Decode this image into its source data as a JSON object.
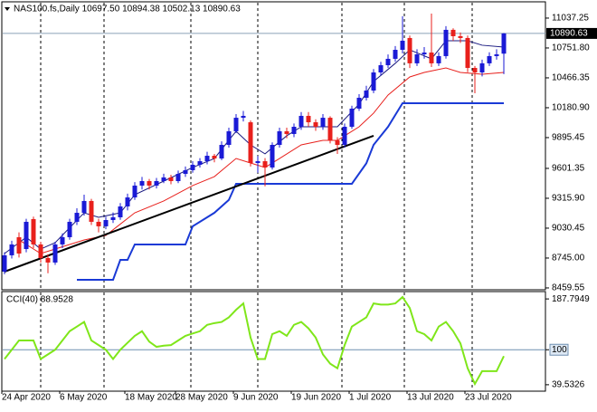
{
  "chart_data": [
    {
      "type": "candlestick",
      "title": "NAS100.fs,Daily  10697.50 10894.38 10502.13 10890.63",
      "categories": [
        "24 Apr 2020",
        null,
        null,
        null,
        null,
        null,
        null,
        null,
        "6 May 2020",
        null,
        null,
        null,
        null,
        null,
        null,
        null,
        null,
        "18 May 2020",
        null,
        null,
        null,
        null,
        null,
        null,
        "28 May 2020",
        null,
        null,
        null,
        null,
        null,
        null,
        null,
        "9 Jun 2020",
        null,
        null,
        null,
        null,
        null,
        null,
        null,
        "19 Jun 2020",
        null,
        null,
        null,
        null,
        null,
        null,
        null,
        "1 Jul 2020",
        null,
        null,
        null,
        null,
        null,
        null,
        null,
        "13 Jul 2020",
        null,
        null,
        null,
        null,
        null,
        null,
        null,
        "23 Jul 2020",
        null,
        null,
        null,
        null,
        null
      ],
      "open": [
        8615,
        8771,
        8944,
        8831,
        9117,
        8875,
        8745,
        8702,
        8875,
        8944,
        9091,
        9177,
        9290,
        9091,
        9048,
        9108,
        9134,
        9238,
        9324,
        9437,
        9480,
        9437,
        9480,
        9515,
        9480,
        9549,
        9584,
        9636,
        9670,
        9722,
        9696,
        9826,
        9956,
        10085,
        10042,
        9653,
        9670,
        9610,
        9826,
        9956,
        9930,
        9999,
        10103,
        10042,
        9999,
        10085,
        9869,
        9826,
        9999,
        10172,
        10276,
        10345,
        10518,
        10587,
        10648,
        10734,
        10847,
        10605,
        10691,
        10708,
        10605,
        10674,
        10925,
        10864,
        10847,
        10561,
        10518,
        10605,
        10674,
        10697.5
      ],
      "high": [
        8800,
        8910,
        8990,
        9120,
        9140,
        8900,
        8780,
        8900,
        8980,
        9120,
        9220,
        9350,
        9310,
        9120,
        9140,
        9180,
        9270,
        9360,
        9470,
        9520,
        9500,
        9510,
        9550,
        9540,
        9580,
        9620,
        9670,
        9700,
        9760,
        9740,
        9860,
        9990,
        10120,
        10150,
        10060,
        9720,
        9700,
        9850,
        9990,
        9990,
        10030,
        10140,
        10140,
        10070,
        10120,
        10100,
        9900,
        10030,
        10200,
        10310,
        10390,
        10550,
        10620,
        10690,
        10770,
        11054,
        10870,
        10740,
        10760,
        11080,
        10710,
        10960,
        10940,
        10900,
        10870,
        10580,
        10640,
        10710,
        10740,
        10894.38
      ],
      "low": [
        8590,
        8740,
        8750,
        8800,
        8840,
        8700,
        8600,
        8680,
        8840,
        8920,
        9060,
        9150,
        9060,
        8990,
        9020,
        9080,
        9110,
        9200,
        9300,
        9400,
        9400,
        9410,
        9460,
        9450,
        9460,
        9520,
        9560,
        9610,
        9640,
        9660,
        9680,
        9800,
        9940,
        10050,
        9620,
        9560,
        9430,
        9590,
        9800,
        9890,
        9900,
        9970,
        10000,
        9960,
        9970,
        9840,
        9740,
        9800,
        9980,
        10150,
        10250,
        10320,
        10490,
        10560,
        10620,
        10700,
        10560,
        10580,
        10650,
        10570,
        10580,
        10650,
        10820,
        10800,
        10520,
        10319,
        10480,
        10580,
        10640,
        10502.13
      ],
      "close": [
        8771,
        8875,
        8788,
        9091,
        8875,
        8745,
        8702,
        8875,
        8944,
        9091,
        9177,
        9290,
        9091,
        9048,
        9108,
        9134,
        9238,
        9324,
        9437,
        9480,
        9437,
        9480,
        9515,
        9480,
        9549,
        9584,
        9636,
        9670,
        9722,
        9696,
        9826,
        9956,
        10085,
        10103,
        9653,
        9670,
        9610,
        9826,
        9956,
        9930,
        9999,
        10103,
        10042,
        9999,
        10085,
        9869,
        9826,
        9999,
        10172,
        10276,
        10345,
        10518,
        10587,
        10648,
        10734,
        10821,
        10605,
        10691,
        10708,
        10605,
        10674,
        10925,
        10864,
        10847,
        10561,
        10518,
        10605,
        10674,
        10691,
        10890.63
      ],
      "up_color": "#1a1ad6",
      "down_color": "#e8201c",
      "overlays": [
        {
          "color": "#e8201c",
          "line_width": 1,
          "x": [
            2,
            5,
            7,
            11,
            14,
            18,
            22,
            26,
            29,
            32,
            34,
            36,
            38,
            41,
            44,
            46,
            49,
            51,
            53,
            56,
            58,
            61,
            63,
            66,
            69
          ],
          "values": [
            8918,
            8788,
            8831,
            8918,
            8961,
            9177,
            9290,
            9437,
            9523,
            9696,
            9653,
            9610,
            9696,
            9826,
            9869,
            9869,
            9999,
            10129,
            10302,
            10475,
            10518,
            10561,
            10518,
            10501,
            10518
          ]
        },
        {
          "color": "#1a1a80",
          "line_width": 1,
          "x": [
            0,
            3,
            5,
            7,
            11,
            13,
            16,
            18,
            22,
            26,
            29,
            32,
            34,
            36,
            39,
            41,
            44,
            46,
            49,
            51,
            54,
            56,
            59,
            61,
            64,
            66,
            69
          ],
          "values": [
            8788,
            8944,
            8831,
            8892,
            9177,
            9134,
            9177,
            9350,
            9480,
            9610,
            9696,
            9956,
            9826,
            9740,
            9913,
            9999,
            9999,
            9999,
            10215,
            10432,
            10605,
            10734,
            10648,
            10821,
            10821,
            10778,
            10760
          ]
        },
        {
          "color": "#1a3ad6",
          "line_width": 2,
          "x": [
            10,
            15,
            16,
            17,
            18,
            25,
            26,
            29,
            31,
            32,
            48,
            50,
            51,
            53,
            55,
            69
          ],
          "values": [
            8537,
            8537,
            8727,
            8727,
            8875,
            8875,
            9048,
            9177,
            9300,
            9454,
            9454,
            9650,
            9826,
            9999,
            10224,
            10224
          ]
        },
        {
          "color": "#000000",
          "line_width": 2,
          "x": [
            0,
            51
          ],
          "values": [
            8615,
            9913
          ]
        }
      ],
      "last_price": 10890.63,
      "ylim": [
        8442,
        11184
      ],
      "yticks": [
        11037.25,
        {
          "value": 10751.8,
          "label": "10751.80"
        },
        10466.35,
        {
          "value": 10180.9,
          "label": "10180.90"
        },
        9895.45,
        9601.35,
        {
          "value": 9315.9,
          "label": "9315.90"
        },
        9030.45,
        {
          "value": 8745,
          "label": "8745.00"
        },
        8459.55
      ]
    },
    {
      "type": "line",
      "title": "CCI(40) 88.9528",
      "color": "#7fe61a",
      "values": [
        84,
        100,
        116,
        116,
        116,
        84,
        92,
        100,
        116,
        132,
        140,
        148,
        116,
        108,
        100,
        84,
        100,
        112,
        124,
        132,
        114,
        105,
        107,
        108,
        116,
        124,
        128,
        132,
        143,
        146,
        148,
        156,
        169,
        180,
        121,
        84,
        84,
        127,
        132,
        124,
        143,
        148,
        137,
        121,
        92,
        76,
        68,
        108,
        140,
        148,
        156,
        180,
        178,
        178,
        180,
        191,
        172,
        132,
        127,
        116,
        140,
        148,
        132,
        111,
        68,
        41,
        63,
        63,
        63,
        88.9528
      ],
      "level_lines": [
        100
      ],
      "ylim": [
        28.4,
        200.5
      ],
      "yticks": [
        187.7949,
        100,
        39.5326
      ]
    }
  ]
}
